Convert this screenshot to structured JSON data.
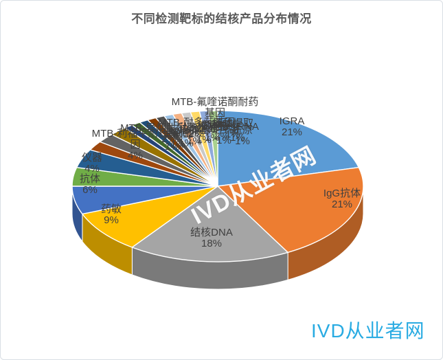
{
  "title": "不同检测靶标的结核产品分布情况",
  "watermark_diagonal": "IVD从业者网",
  "watermark_corner": "IVD从业者网",
  "colors": {
    "title_text": "#595959",
    "label_text": "#3F3F3F",
    "corner_watermark": "#29ABE2",
    "background": "#FFFFFF"
  },
  "chart_data": {
    "type": "pie",
    "is_3d": true,
    "title": "不同检测靶标的结核产品分布情况",
    "unit": "percent",
    "legend_position": "none",
    "label_format": "name + percent",
    "slices": [
      {
        "label": "IGRA",
        "value": 21,
        "color": "#5B9BD5"
      },
      {
        "label": "IgG抗体",
        "value": 21,
        "color": "#ED7D31"
      },
      {
        "label": "结核DNA",
        "value": 18,
        "color": "#A5A5A5"
      },
      {
        "label": "药敏",
        "value": 9,
        "color": "#FFC000"
      },
      {
        "label": "抗体",
        "value": 6,
        "color": "#4472C4"
      },
      {
        "label": "仪器",
        "value": 4,
        "color": "#70AD47"
      },
      {
        "label": "MTB-利福平耐药基因",
        "value": 4,
        "color": "#255E91"
      },
      {
        "label": "MTB-异烟肼耐药基因",
        "value": 2,
        "color": "#9E480E"
      },
      {
        "label": "MTB-耐多药基因",
        "value": 2,
        "color": "#636363"
      },
      {
        "label": "菌种鉴定",
        "value": 2,
        "color": "#997300"
      },
      {
        "label": "MTB-氟喹诺酮耐药基因",
        "value": 1,
        "color": "#264478"
      },
      {
        "label": "结核RNA",
        "value": 1,
        "color": "#43682B"
      },
      {
        "label": "抗原",
        "value": 1,
        "color": "#1F4E79"
      },
      {
        "label": "核酸提取",
        "value": 1,
        "color": "#833C00"
      },
      {
        "label": "质控品",
        "value": 1,
        "color": "#525252"
      },
      {
        "label": "校准品",
        "value": 1,
        "color": "#9DC3E6"
      },
      {
        "label": "检测卡",
        "value": 1,
        "color": "#F4B183"
      },
      {
        "label": "培养基",
        "value": 1,
        "color": "#C9C9C9"
      },
      {
        "label": "染色液",
        "value": 1,
        "color": "#FFD966"
      },
      {
        "label": "试剂盒",
        "value": 1,
        "color": "#8FAADC"
      },
      {
        "label": "其他",
        "value": 1,
        "color": "#A9D18E"
      }
    ]
  }
}
